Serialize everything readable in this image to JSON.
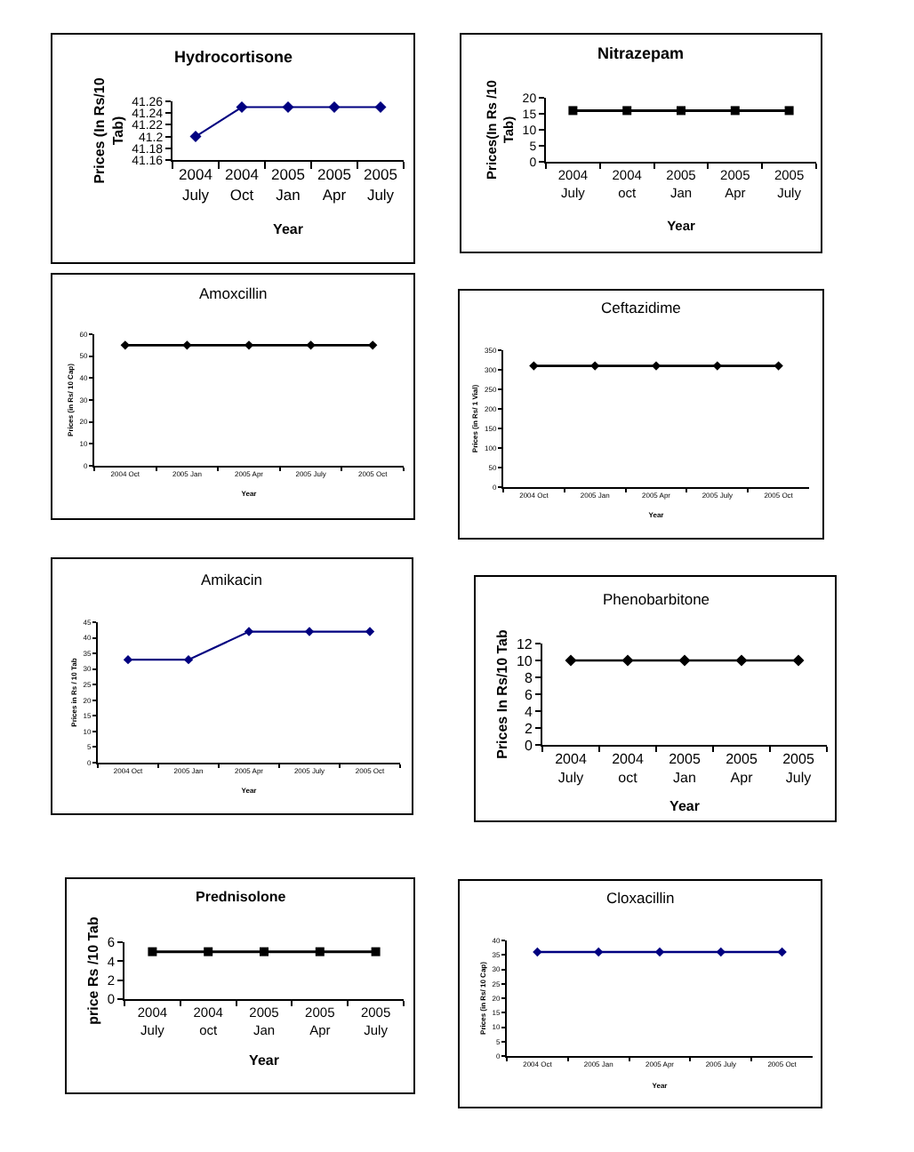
{
  "chart_data": [
    {
      "type": "line",
      "title": "Hydrocortisone",
      "xlabel": "Year",
      "ylabel": "Prices (In Rs/10\nTab)",
      "categories": [
        "2004\nJuly",
        "2004\nOct",
        "2005\nJan",
        "2005\nApr",
        "2005\nJuly"
      ],
      "series": [
        {
          "color": "#000080",
          "values": [
            41.2,
            41.25,
            41.25,
            41.25,
            41.25
          ]
        }
      ],
      "ylim": [
        41.16,
        41.26
      ],
      "yticks": [
        41.16,
        41.18,
        41.2,
        41.22,
        41.24,
        41.26
      ],
      "marker": "diamond"
    },
    {
      "type": "line",
      "title": "Nitrazepam",
      "xlabel": "Year",
      "ylabel": "Prices(In Rs /10\nTab)",
      "categories": [
        "2004\nJuly",
        "2004\noct",
        "2005\nJan",
        "2005\nApr",
        "2005\nJuly"
      ],
      "series": [
        {
          "color": "#000000",
          "values": [
            16,
            16,
            16,
            16,
            16
          ]
        }
      ],
      "ylim": [
        0,
        20
      ],
      "yticks": [
        0,
        5,
        10,
        15,
        20
      ],
      "marker": "square"
    },
    {
      "type": "line",
      "title": "Amoxcillin",
      "xlabel": "Year",
      "ylabel": "Prices (in Rs/ 10 Cap)",
      "categories": [
        "2004 Oct",
        "2005 Jan",
        "2005 Apr",
        "2005 July",
        "2005 Oct"
      ],
      "series": [
        {
          "color": "#000000",
          "values": [
            55,
            55,
            55,
            55,
            55
          ]
        }
      ],
      "ylim": [
        0,
        60
      ],
      "yticks": [
        0,
        10,
        20,
        30,
        40,
        50,
        60
      ],
      "marker": "diamond"
    },
    {
      "type": "line",
      "title": "Ceftazidime",
      "xlabel": "Year",
      "ylabel": "Prices (in Rs/ 1 Vial)",
      "categories": [
        "2004 Oct",
        "2005 Jan",
        "2005 Apr",
        "2005 July",
        "2005 Oct"
      ],
      "series": [
        {
          "color": "#000000",
          "values": [
            310,
            310,
            310,
            310,
            310
          ]
        }
      ],
      "ylim": [
        0,
        350
      ],
      "yticks": [
        0,
        50,
        100,
        150,
        200,
        250,
        300,
        350
      ],
      "marker": "diamond"
    },
    {
      "type": "line",
      "title": "Amikacin",
      "xlabel": "Year",
      "ylabel": "Prices in Rs / 10 Tab",
      "categories": [
        "2004 Oct",
        "2005 Jan",
        "2005 Apr",
        "2005 July",
        "2005 Oct"
      ],
      "series": [
        {
          "color": "#000080",
          "values": [
            33,
            33,
            42,
            42,
            42
          ]
        }
      ],
      "ylim": [
        0,
        45
      ],
      "yticks": [
        0,
        5,
        10,
        15,
        20,
        25,
        30,
        35,
        40,
        45
      ],
      "marker": "diamond"
    },
    {
      "type": "line",
      "title": "Phenobarbitone",
      "xlabel": "Year",
      "ylabel": "Prices In Rs/10 Tab",
      "categories": [
        "2004\nJuly",
        "2004\noct",
        "2005\nJan",
        "2005\nApr",
        "2005\nJuly"
      ],
      "series": [
        {
          "color": "#000000",
          "values": [
            10,
            10,
            10,
            10,
            10
          ]
        }
      ],
      "ylim": [
        0,
        12
      ],
      "yticks": [
        0,
        2,
        4,
        6,
        8,
        10,
        12
      ],
      "marker": "diamond"
    },
    {
      "type": "line",
      "title": "Prednisolone",
      "xlabel": "Year",
      "ylabel": "price Rs /10 Tab",
      "categories": [
        "2004\nJuly",
        "2004\noct",
        "2005\nJan",
        "2005\nApr",
        "2005\nJuly"
      ],
      "series": [
        {
          "color": "#000000",
          "values": [
            5,
            5,
            5,
            5,
            5
          ]
        }
      ],
      "ylim": [
        0,
        6
      ],
      "yticks": [
        0,
        2,
        4,
        6
      ],
      "marker": "square"
    },
    {
      "type": "line",
      "title": "Cloxacillin",
      "xlabel": "Year",
      "ylabel": "Prices (in Rs/ 10 Cap)",
      "categories": [
        "2004 Oct",
        "2005 Jan",
        "2005 Apr",
        "2005 July",
        "2005 Oct"
      ],
      "series": [
        {
          "color": "#000080",
          "values": [
            36,
            36,
            36,
            36,
            36
          ]
        }
      ],
      "ylim": [
        0,
        40
      ],
      "yticks": [
        0,
        5,
        10,
        15,
        20,
        25,
        30,
        35,
        40
      ],
      "marker": "diamond"
    }
  ]
}
